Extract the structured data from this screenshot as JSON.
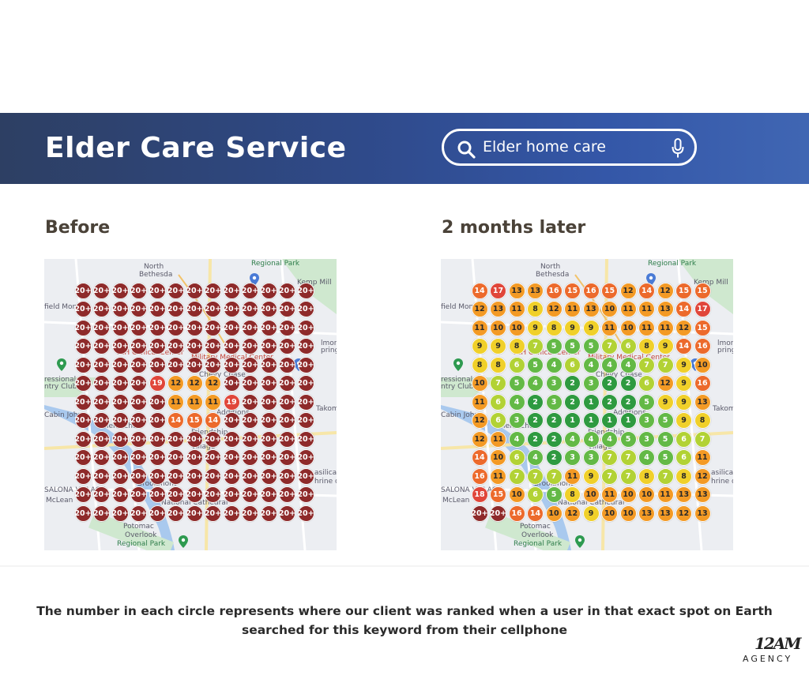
{
  "banner": {
    "title": "Elder Care Service",
    "bg_colors": [
      "#2d3f63",
      "#4066b3"
    ],
    "search": {
      "query": "Elder home care",
      "search_icon": "search-icon",
      "mic_icon": "microphone-icon"
    }
  },
  "panels": [
    {
      "title": "Before",
      "map_labels": [
        "Regional Park",
        "North",
        "Bethesda",
        "Kemp Mill",
        "field Mon",
        "NIH Clinical Center",
        "Military Medical Center",
        "Chevy Chase",
        "ressional",
        "ntry Club",
        "Cabin John",
        "Glen Echo",
        "Friendship",
        "Village",
        "Additions",
        "Brookmont",
        "McLean",
        "National Cathedral",
        "Potomac",
        "Overlook",
        "Regional Park",
        "lmore",
        "pring",
        "Takom",
        "asilica",
        "hrine o",
        "SALONA VILLAGE"
      ],
      "grid": [
        [
          "20+",
          "20+",
          "20+",
          "20+",
          "20+",
          "20+",
          "20+",
          "20+",
          "20+",
          "20+",
          "20+",
          "20+",
          "20+"
        ],
        [
          "20+",
          "20+",
          "20+",
          "20+",
          "20+",
          "20+",
          "20+",
          "20+",
          "20+",
          "20+",
          "20+",
          "20+",
          "20+"
        ],
        [
          "20+",
          "20+",
          "20+",
          "20+",
          "20+",
          "20+",
          "20+",
          "20+",
          "20+",
          "20+",
          "20+",
          "20+",
          "20+"
        ],
        [
          "20+",
          "20+",
          "20+",
          "20+",
          "20+",
          "20+",
          "20+",
          "20+",
          "20+",
          "20+",
          "20+",
          "20+",
          "20+"
        ],
        [
          "20+",
          "20+",
          "20+",
          "20+",
          "20+",
          "20+",
          "20+",
          "20+",
          "20+",
          "20+",
          "20+",
          "20+",
          "20+"
        ],
        [
          "20+",
          "20+",
          "20+",
          "20+",
          "19",
          "12",
          "12",
          "12",
          "20+",
          "20+",
          "20+",
          "20+",
          "20+"
        ],
        [
          "20+",
          "20+",
          "20+",
          "20+",
          "20+",
          "11",
          "11",
          "11",
          "19",
          "20+",
          "20+",
          "20+",
          "20+"
        ],
        [
          "20+",
          "20+",
          "20+",
          "20+",
          "20+",
          "14",
          "15",
          "14",
          "20+",
          "20+",
          "20+",
          "20+",
          "20+"
        ],
        [
          "20+",
          "20+",
          "20+",
          "20+",
          "20+",
          "20+",
          "20+",
          "20+",
          "20+",
          "20+",
          "20+",
          "20+",
          "20+"
        ],
        [
          "20+",
          "20+",
          "20+",
          "20+",
          "20+",
          "20+",
          "20+",
          "20+",
          "20+",
          "20+",
          "20+",
          "20+",
          "20+"
        ],
        [
          "20+",
          "20+",
          "20+",
          "20+",
          "20+",
          "20+",
          "20+",
          "20+",
          "20+",
          "20+",
          "20+",
          "20+",
          "20+"
        ],
        [
          "20+",
          "20+",
          "20+",
          "20+",
          "20+",
          "20+",
          "20+",
          "20+",
          "20+",
          "20+",
          "20+",
          "20+",
          "20+"
        ],
        [
          "20+",
          "20+",
          "20+",
          "20+",
          "20+",
          "20+",
          "20+",
          "20+",
          "20+",
          "20+",
          "20+",
          "20+",
          "20+"
        ]
      ]
    },
    {
      "title": "2 months later",
      "map_labels": [
        "Regional Park",
        "North",
        "Bethesda",
        "Kemp Mill",
        "field Mon",
        "NIH Clinical Center",
        "Military Medical Center",
        "Chevy Chase",
        "ressional",
        "ntry Club",
        "Cabin John",
        "Glen Echo",
        "Friendship",
        "Village",
        "Additions",
        "Brookmont",
        "McLean",
        "National Cathedral",
        "Potomac",
        "Overlook",
        "Regional Park",
        "lmore",
        "pring",
        "Takom",
        "asilica",
        "hrine o",
        "SALONA VILLAGE"
      ],
      "grid": [
        [
          "14",
          "17",
          "13",
          "13",
          "16",
          "15",
          "16",
          "15",
          "12",
          "14",
          "12",
          "15",
          "15"
        ],
        [
          "12",
          "13",
          "11",
          "8",
          "12",
          "11",
          "13",
          "10",
          "11",
          "11",
          "13",
          "14",
          "17"
        ],
        [
          "11",
          "10",
          "10",
          "9",
          "8",
          "9",
          "9",
          "11",
          "10",
          "11",
          "11",
          "12",
          "15"
        ],
        [
          "9",
          "9",
          "8",
          "7",
          "5",
          "5",
          "5",
          "7",
          "6",
          "8",
          "9",
          "14",
          "16"
        ],
        [
          "8",
          "8",
          "6",
          "5",
          "4",
          "6",
          "4",
          "4",
          "4",
          "7",
          "7",
          "9",
          "10"
        ],
        [
          "10",
          "7",
          "5",
          "4",
          "3",
          "2",
          "3",
          "2",
          "2",
          "6",
          "12",
          "9",
          "16"
        ],
        [
          "11",
          "6",
          "4",
          "2",
          "3",
          "2",
          "1",
          "2",
          "2",
          "5",
          "9",
          "9",
          "13"
        ],
        [
          "12",
          "6",
          "3",
          "2",
          "2",
          "1",
          "1",
          "1",
          "1",
          "3",
          "5",
          "9",
          "8"
        ],
        [
          "12",
          "11",
          "4",
          "2",
          "2",
          "4",
          "4",
          "4",
          "5",
          "3",
          "5",
          "6",
          "7"
        ],
        [
          "14",
          "10",
          "6",
          "4",
          "2",
          "3",
          "3",
          "7",
          "7",
          "4",
          "5",
          "6",
          "11"
        ],
        [
          "16",
          "11",
          "7",
          "7",
          "7",
          "11",
          "9",
          "7",
          "7",
          "8",
          "7",
          "8",
          "12"
        ],
        [
          "18",
          "15",
          "10",
          "6",
          "5",
          "8",
          "10",
          "11",
          "10",
          "10",
          "11",
          "13",
          "13"
        ],
        [
          "20+",
          "20+",
          "16",
          "14",
          "10",
          "12",
          "9",
          "10",
          "10",
          "13",
          "13",
          "12",
          "13"
        ]
      ]
    }
  ],
  "rank_colors": {
    "maroon": "#8e2a2a",
    "red": "#e0463a",
    "orange_red": "#ec6a2c",
    "orange": "#f39a25",
    "yellow": "#f0d02a",
    "lime": "#b2d235",
    "green": "#63b946",
    "dark_green": "#2e9a40"
  },
  "caption": "The number in each circle represents where our client was ranked when a user in that exact spot on Earth searched for this keyword from their cellphone",
  "logo": {
    "mark": "12AM",
    "text": "AGENCY"
  }
}
